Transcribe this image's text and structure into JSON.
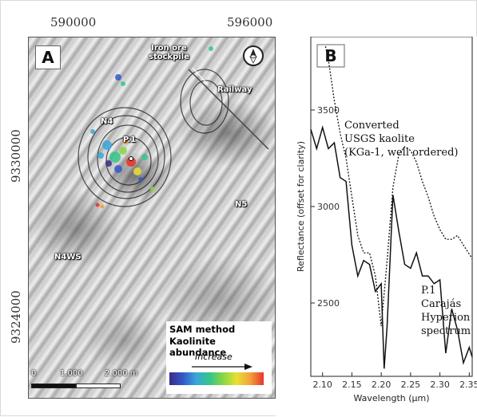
{
  "map_panel": {
    "panel_label": "A",
    "top_coords": [
      "590000",
      "596000"
    ],
    "left_coords": [
      "9330000",
      "9324000"
    ],
    "labels": {
      "iron_ore_stockpile": [
        "Iron ore",
        "stockpile"
      ],
      "railway": "Railway",
      "n4": "N4",
      "p1": "P.1",
      "n5": "N5",
      "n4ws": "N4WS"
    },
    "legend": {
      "method": "SAM method",
      "quantity": "Kaolinite abundance",
      "ramp_label": "Increase"
    },
    "scale": {
      "zero": "0",
      "mid": "1.000",
      "end": "2.000 m"
    }
  },
  "chart_data": {
    "type": "line",
    "panel_label": "B",
    "xlabel": "Wavelength (μm)",
    "ylabel": "Reflectance (offset for clarity)",
    "xlim": [
      2.08,
      2.355
    ],
    "ylim": [
      2120,
      3880
    ],
    "x_ticks": [
      2.1,
      2.15,
      2.2,
      2.25,
      2.3,
      2.35
    ],
    "x_tick_labels": [
      "2.10",
      "2.15",
      "2.20",
      "2.25",
      "2.30",
      "2.35"
    ],
    "y_ticks": [
      2500,
      3000,
      3500
    ],
    "y_tick_labels": [
      "2500",
      "3000",
      "3500"
    ],
    "grid": false,
    "series": [
      {
        "name": "Converted USGS kaolite (KGa-1, well ordered)",
        "label_lines": [
          "Converted",
          "USGS kaolite",
          "(KGa-1, well ordered)"
        ],
        "style": "dotted",
        "color": "#111111",
        "x": [
          2.105,
          2.11,
          2.12,
          2.13,
          2.14,
          2.15,
          2.16,
          2.17,
          2.18,
          2.19,
          2.2,
          2.21,
          2.22,
          2.23,
          2.24,
          2.25,
          2.26,
          2.27,
          2.28,
          2.29,
          2.3,
          2.31,
          2.32,
          2.33,
          2.34,
          2.355
        ],
        "y": [
          3830,
          3760,
          3550,
          3380,
          3250,
          3050,
          2850,
          2760,
          2760,
          2640,
          2380,
          2720,
          3100,
          3270,
          3310,
          3290,
          3230,
          3130,
          3050,
          2950,
          2880,
          2830,
          2830,
          2850,
          2800,
          2730
        ]
      },
      {
        "name": "P.1 Carajás Hyperion spectrum",
        "label_lines": [
          "P.1",
          "Carajás",
          "Hyperion",
          "spectrum"
        ],
        "style": "solid",
        "color": "#111111",
        "x": [
          2.08,
          2.09,
          2.1,
          2.11,
          2.12,
          2.13,
          2.14,
          2.15,
          2.16,
          2.17,
          2.18,
          2.19,
          2.2,
          2.205,
          2.21,
          2.22,
          2.23,
          2.24,
          2.25,
          2.26,
          2.27,
          2.28,
          2.29,
          2.3,
          2.31,
          2.32,
          2.33,
          2.34,
          2.35,
          2.355
        ],
        "y": [
          3400,
          3300,
          3410,
          3300,
          3330,
          3150,
          3130,
          2800,
          2640,
          2720,
          2700,
          2560,
          2600,
          2160,
          2380,
          3060,
          2870,
          2700,
          2680,
          2760,
          2640,
          2640,
          2600,
          2620,
          2240,
          2470,
          2360,
          2190,
          2270,
          2220
        ]
      }
    ]
  }
}
